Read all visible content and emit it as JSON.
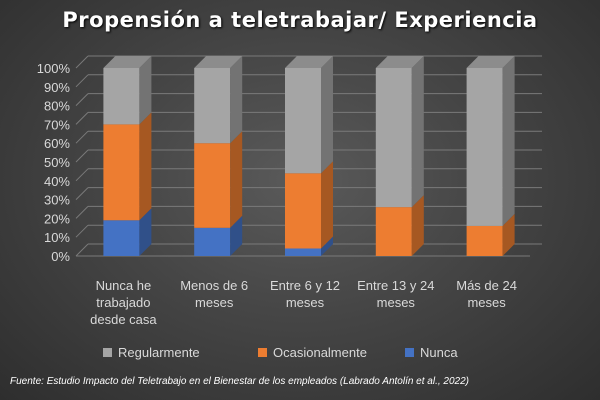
{
  "chart_data": {
    "type": "bar",
    "stacked": true,
    "percent_stacked": true,
    "three_d": true,
    "title": "Propensión a teletrabajar/  Experiencia",
    "categories": [
      "Nunca he trabajado desde casa",
      "Menos de 6 meses",
      "Entre 6 y 12 meses",
      "Entre 13 y 24 meses",
      "Más de 24 meses"
    ],
    "category_lines": [
      [
        "Nunca he",
        "trabajado",
        "desde casa"
      ],
      [
        "Menos de 6",
        "meses"
      ],
      [
        "Entre 6 y 12",
        "meses"
      ],
      [
        "Entre 13 y 24",
        "meses"
      ],
      [
        "Más de 24",
        "meses"
      ]
    ],
    "series": [
      {
        "name": "Nunca",
        "color": "#4472c4",
        "values": [
          19,
          15,
          4,
          0,
          0
        ]
      },
      {
        "name": "Ocasionalmente",
        "color": "#ed7d31",
        "values": [
          51,
          45,
          40,
          26,
          16
        ]
      },
      {
        "name": "Regularmente",
        "color": "#a5a5a5",
        "values": [
          30,
          40,
          56,
          74,
          84
        ]
      }
    ],
    "legend_order": [
      "Regularmente",
      "Ocasionalmente",
      "Nunca"
    ],
    "yticks": [
      "0%",
      "10%",
      "20%",
      "30%",
      "40%",
      "50%",
      "60%",
      "70%",
      "80%",
      "90%",
      "100%"
    ],
    "ylim": [
      0,
      100
    ],
    "grid": true,
    "legend_position": "bottom"
  },
  "source": "Fuente: Estudio Impacto del Teletrabajo en el Bienestar de los empleados (Labrado Antolín et al., 2022)"
}
